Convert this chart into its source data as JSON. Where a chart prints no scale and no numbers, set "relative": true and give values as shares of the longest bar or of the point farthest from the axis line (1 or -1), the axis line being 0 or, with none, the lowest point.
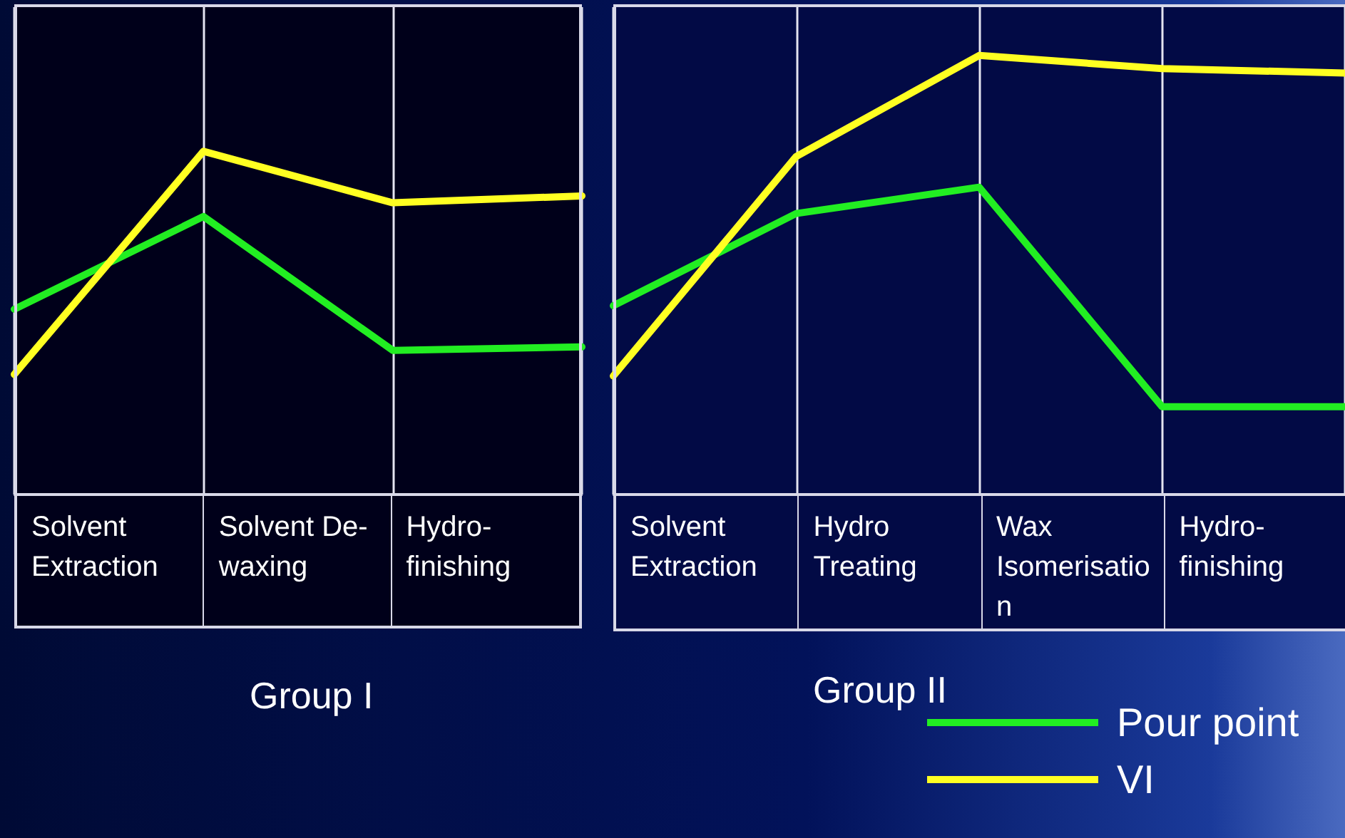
{
  "chart_data": [
    {
      "type": "line",
      "relative": true,
      "xlabel": "Group I",
      "categories": [
        null,
        null,
        null,
        null
      ],
      "annotations": [
        "Solvent Extraction",
        "Solvent De-waxing",
        "Hydro-finishing"
      ],
      "grid": "x",
      "legend": false,
      "marker": "none",
      "line_style": "solid",
      "series": [
        {
          "color": "#22ee22",
          "values": [
            0.54,
            0.81,
            0.42,
            0.43
          ]
        },
        {
          "color": "#ffff22",
          "values": [
            0.35,
            1,
            0.85,
            0.87
          ]
        }
      ]
    },
    {
      "type": "line",
      "relative": true,
      "xlabel": "Group II",
      "categories": [
        null,
        null,
        null,
        null,
        null
      ],
      "annotations": [
        "Solvent Extraction",
        "Hydro Treating",
        "Wax Isomerisation",
        "Hydro-finishing"
      ],
      "grid": "x",
      "legend": "bottom right",
      "marker": "none",
      "line_style": "solid",
      "series": [
        {
          "name": "Pour point",
          "color": "#22ee22",
          "values": [
            0.43,
            0.64,
            0.7,
            0.2,
            0.2
          ]
        },
        {
          "name": "VI",
          "color": "#ffff22",
          "values": [
            0.27,
            0.77,
            1,
            0.97,
            0.96
          ]
        }
      ]
    }
  ]
}
